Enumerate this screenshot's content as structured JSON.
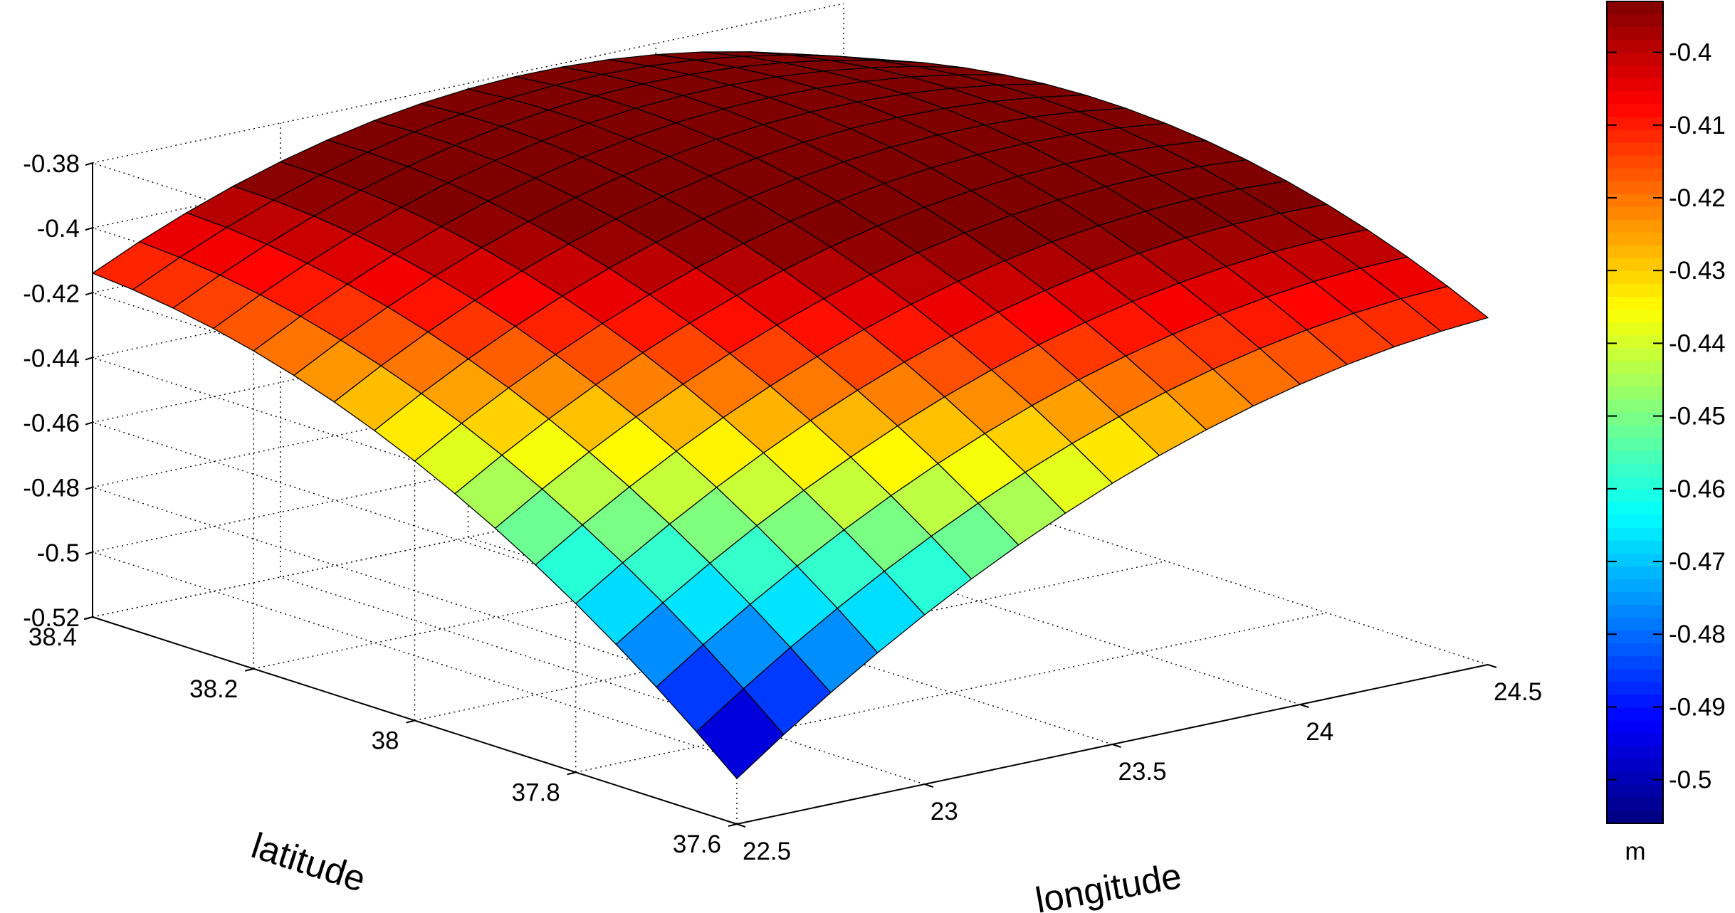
{
  "chart_data": {
    "type": "surface",
    "xlabel": "longitude",
    "ylabel": "latitude",
    "colorbar_label": "m",
    "xlim": [
      22.5,
      24.5
    ],
    "ylim": [
      37.6,
      38.4
    ],
    "zlim": [
      -0.52,
      -0.38
    ],
    "clim": [
      -0.506,
      -0.393
    ],
    "colormap": "jet",
    "grid": true,
    "x_ticks": [
      "22.5",
      "23",
      "23.5",
      "24",
      "24.5"
    ],
    "y_ticks": [
      "37.6",
      "37.8",
      "38",
      "38.2",
      "38.4"
    ],
    "z_ticks": [
      "-0.52",
      "-0.5",
      "-0.48",
      "-0.46",
      "-0.44",
      "-0.42",
      "-0.4",
      "-0.38"
    ],
    "colorbar_ticks": [
      "-0.5",
      "-0.49",
      "-0.48",
      "-0.47",
      "-0.46",
      "-0.45",
      "-0.44",
      "-0.43",
      "-0.42",
      "-0.41",
      "-0.4"
    ],
    "grid_size": [
      17,
      17
    ],
    "surface_description": "smooth dome, minimum about -0.506 m at (22.5 E, 37.6 N), maximum about -0.393 m near (24.1 E, 38.4 N)",
    "corner_values": {
      "lon22.5_lat37.6": -0.506,
      "lon24.5_lat37.6": -0.413,
      "lon22.5_lat38.4": -0.414,
      "lon24.5_lat38.4": -0.397
    }
  }
}
